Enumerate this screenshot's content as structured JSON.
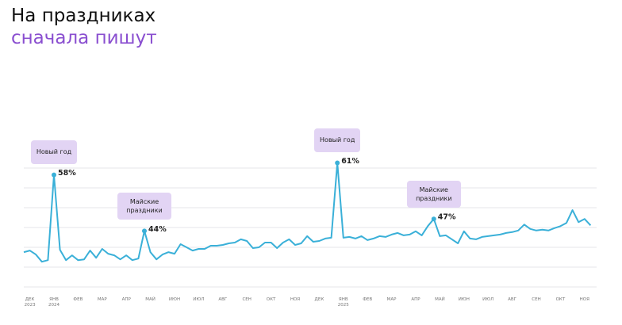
{
  "title": "На праздниках",
  "subtitle": "сначала пишут",
  "chart_data": {
    "type": "line",
    "color": "#3ab0d8",
    "ylim": [
      30,
      72
    ],
    "categories": [
      null,
      "ДЕК\n2023",
      null,
      null,
      null,
      "ЯНВ\n2024",
      null,
      null,
      null,
      "ФЕВ",
      null,
      null,
      null,
      "МАР",
      null,
      null,
      null,
      "АПР",
      null,
      null,
      null,
      "МАЙ",
      null,
      null,
      null,
      "ИЮН",
      null,
      null,
      null,
      "ИЮЛ",
      null,
      null,
      null,
      "АВГ",
      null,
      null,
      null,
      "СЕН",
      null,
      null,
      null,
      "ОКТ",
      null,
      null,
      null,
      "НОЯ",
      null,
      null,
      null,
      "ДЕК",
      null,
      null,
      null,
      "ЯНВ\n2025",
      null,
      null,
      null,
      "ФЕВ",
      null,
      null,
      null,
      "МАР",
      null,
      null,
      null,
      "АПР",
      null,
      null,
      null,
      "МАЙ",
      null,
      null,
      null,
      "ИЮН",
      null,
      null,
      null,
      "ИЮЛ",
      null,
      null,
      null,
      "АВГ",
      null,
      null,
      null,
      "СЕН",
      null,
      null,
      null,
      "ОКТ",
      null,
      null,
      null,
      "НОЯ",
      null
    ],
    "values": [
      38.7,
      39.1,
      38.1,
      36.3,
      36.7,
      58,
      39.3,
      36.7,
      37.9,
      36.7,
      36.9,
      39.1,
      37.3,
      39.5,
      38.3,
      37.9,
      36.9,
      37.9,
      36.7,
      37.1,
      44,
      38.7,
      36.9,
      38.1,
      38.7,
      38.3,
      40.7,
      39.9,
      39.1,
      39.5,
      39.5,
      40.3,
      40.3,
      40.5,
      40.9,
      41.1,
      41.9,
      41.5,
      39.7,
      39.9,
      41.1,
      41.1,
      39.7,
      41.1,
      41.9,
      40.5,
      40.9,
      42.7,
      41.3,
      41.5,
      42.1,
      42.3,
      61,
      42.3,
      42.5,
      42.1,
      42.7,
      41.7,
      42.1,
      42.7,
      42.5,
      43.1,
      43.5,
      42.9,
      43.1,
      43.9,
      42.9,
      45.2,
      47,
      42.7,
      42.9,
      41.9,
      40.9,
      43.9,
      42.1,
      41.9,
      42.5,
      42.7,
      42.9,
      43.1,
      43.5,
      43.7,
      44.1,
      45.6,
      44.5,
      44.1,
      44.3,
      44.1,
      44.7,
      45.2,
      46,
      49.2,
      46.2,
      47,
      45.4
    ],
    "value_labels": [
      null,
      null,
      null,
      null,
      null,
      "58%",
      null,
      null,
      null,
      null,
      null,
      null,
      null,
      null,
      null,
      null,
      null,
      null,
      null,
      null,
      "44%",
      null,
      null,
      null,
      null,
      null,
      null,
      null,
      null,
      null,
      null,
      null,
      null,
      null,
      null,
      null,
      null,
      null,
      null,
      null,
      null,
      null,
      null,
      null,
      null,
      null,
      null,
      null,
      null,
      null,
      null,
      null,
      "61%",
      null,
      null,
      null,
      null,
      null,
      null,
      null,
      null,
      null,
      null,
      null,
      null,
      null,
      null,
      null,
      "47%",
      null,
      null,
      null,
      null,
      null,
      null,
      null,
      null,
      null,
      null,
      null,
      null,
      null,
      null,
      null,
      null,
      null,
      null,
      null,
      null,
      null,
      null,
      null,
      null,
      null,
      null
    ],
    "annotations": [
      "Новый год",
      "Майские праздники",
      "Новый год",
      "Майские праздники"
    ]
  }
}
